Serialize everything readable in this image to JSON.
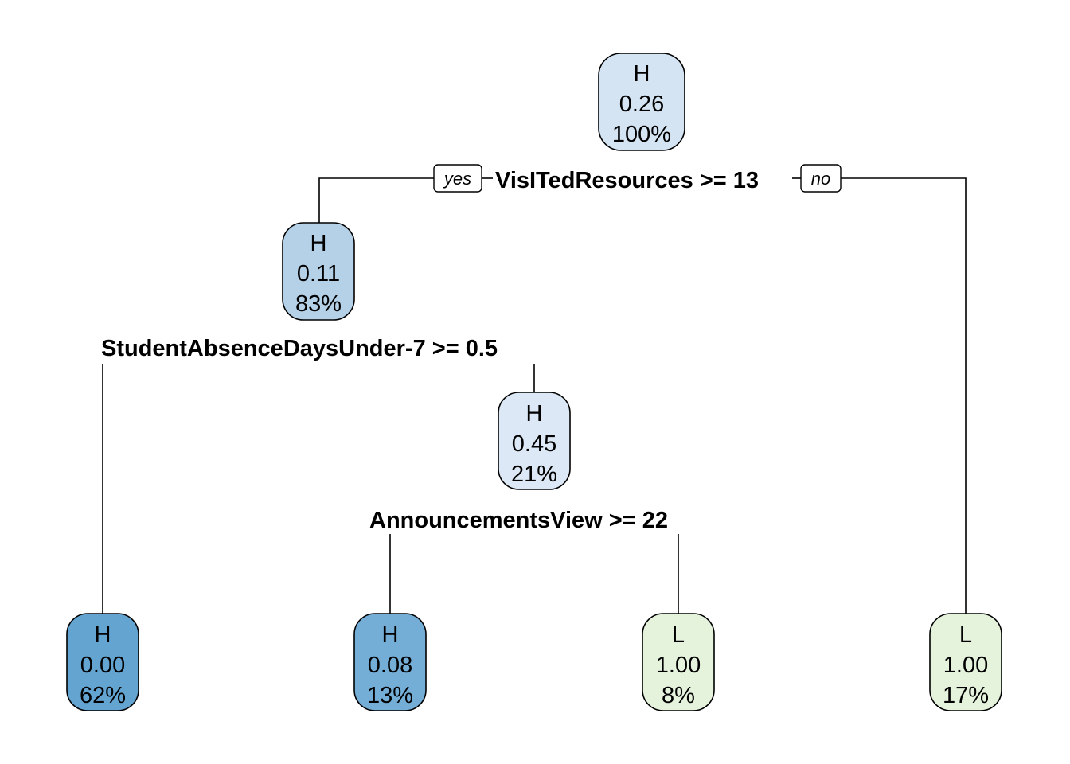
{
  "tree": {
    "colors": {
      "H_100": "#d5e4f3",
      "H_83": "#b4d1e8",
      "H_21": "#dce8f5",
      "H_62": "#63a4d0",
      "H_13": "#74aed7",
      "L_8": "#e5f2dc",
      "L_17": "#e5f2dc"
    },
    "nodes": [
      {
        "id": "root",
        "class_label": "H",
        "prob": "0.26",
        "pct": "100%"
      },
      {
        "id": "n2",
        "class_label": "H",
        "prob": "0.11",
        "pct": "83%"
      },
      {
        "id": "n5",
        "class_label": "H",
        "prob": "0.45",
        "pct": "21%"
      },
      {
        "id": "leaf4",
        "class_label": "H",
        "prob": "0.00",
        "pct": "62%"
      },
      {
        "id": "leaf10",
        "class_label": "H",
        "prob": "0.08",
        "pct": "13%"
      },
      {
        "id": "leaf11",
        "class_label": "L",
        "prob": "1.00",
        "pct": "8%"
      },
      {
        "id": "leaf3",
        "class_label": "L",
        "prob": "1.00",
        "pct": "17%"
      }
    ],
    "splits": [
      {
        "id": "s1",
        "text": "VisITedResources >= 13"
      },
      {
        "id": "s2",
        "text": "StudentAbsenceDaysUnder-7 >= 0.5"
      },
      {
        "id": "s3",
        "text": "AnnouncementsView >= 22"
      }
    ],
    "branch_labels": {
      "yes": "yes",
      "no": "no"
    }
  }
}
